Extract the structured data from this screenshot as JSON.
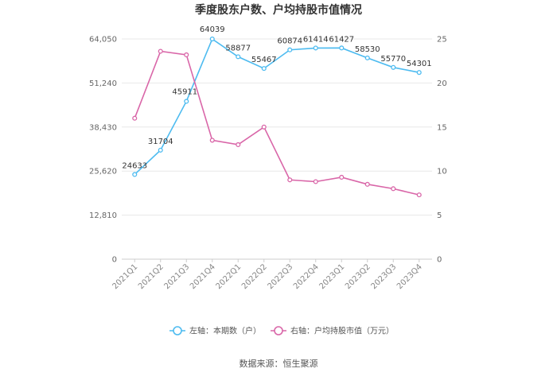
{
  "chart_data": {
    "type": "line",
    "title": "季度股东户数、户均持股市值情况",
    "categories": [
      "2021Q1",
      "2021Q2",
      "2021Q3",
      "2021Q4",
      "2022Q1",
      "2022Q2",
      "2022Q3",
      "2022Q4",
      "2023Q1",
      "2023Q2",
      "2023Q3",
      "2023Q4"
    ],
    "left_axis": {
      "ticks": [
        "0",
        "12,810",
        "25,620",
        "38,430",
        "51,240",
        "64,050"
      ],
      "range": [
        0,
        64050
      ]
    },
    "right_axis": {
      "ticks": [
        "0",
        "5",
        "10",
        "15",
        "20",
        "25"
      ],
      "range": [
        0,
        25
      ]
    },
    "series": [
      {
        "name": "左轴：本期数（户）",
        "axis": "left",
        "color": "#4dbbf0",
        "values": [
          24633,
          31704,
          45911,
          64039,
          58877,
          55467,
          60874,
          61414,
          61427,
          58530,
          55770,
          54301
        ],
        "labels": [
          "24633",
          "31704",
          "45911",
          "64039",
          "58877",
          "55467",
          "60874",
          "61414",
          "61427",
          "58530",
          "55770",
          "54301"
        ]
      },
      {
        "name": "右轴：户均持股市值（万元）",
        "axis": "right",
        "color": "#d966a8",
        "values": [
          16.0,
          23.6,
          23.2,
          13.5,
          13.0,
          15.0,
          9.0,
          8.8,
          9.3,
          8.5,
          8.0,
          7.3
        ]
      }
    ],
    "grid": true,
    "legend_position": "bottom"
  },
  "source": "数据来源：恒生聚源"
}
